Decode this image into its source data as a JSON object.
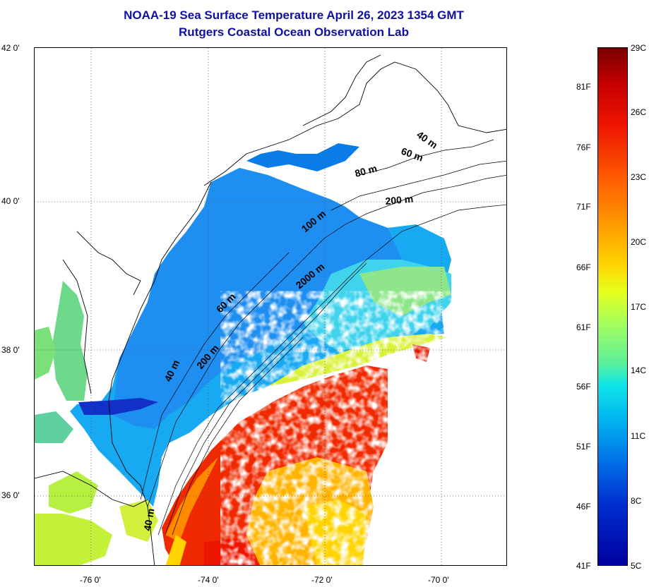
{
  "title": {
    "line1": "NOAA-19 Sea Surface Temperature April 26, 2023 1354 GMT",
    "line2": "Rutgers Coastal Ocean Observation Lab"
  },
  "axes": {
    "lat_labels": [
      "42 0'",
      "40 0'",
      "38 0'",
      "36 0'"
    ],
    "lon_labels": [
      "-76 0'",
      "-74 0'",
      "-72 0'",
      "-70 0'"
    ]
  },
  "isobaths": [
    "40 m",
    "60 m",
    "80 m",
    "200 m",
    "100 m",
    "2000 m",
    "60 m",
    "200 m",
    "40 m",
    "40 m"
  ],
  "colorbar": {
    "fahrenheit": [
      "81F",
      "76F",
      "71F",
      "66F",
      "61F",
      "56F",
      "51F",
      "46F",
      "41F"
    ],
    "celsius": [
      "29C",
      "26C",
      "23C",
      "20C",
      "17C",
      "14C",
      "11C",
      "8C",
      "5C"
    ],
    "colors": {
      "warm_max": "#7a0000",
      "red": "#ee1500",
      "orange": "#ff9a00",
      "yellow": "#ffd400",
      "green": "#a6ff5a",
      "cyan": "#10e6e6",
      "blue": "#0070e8",
      "cold_min": "#0000a0"
    }
  }
}
